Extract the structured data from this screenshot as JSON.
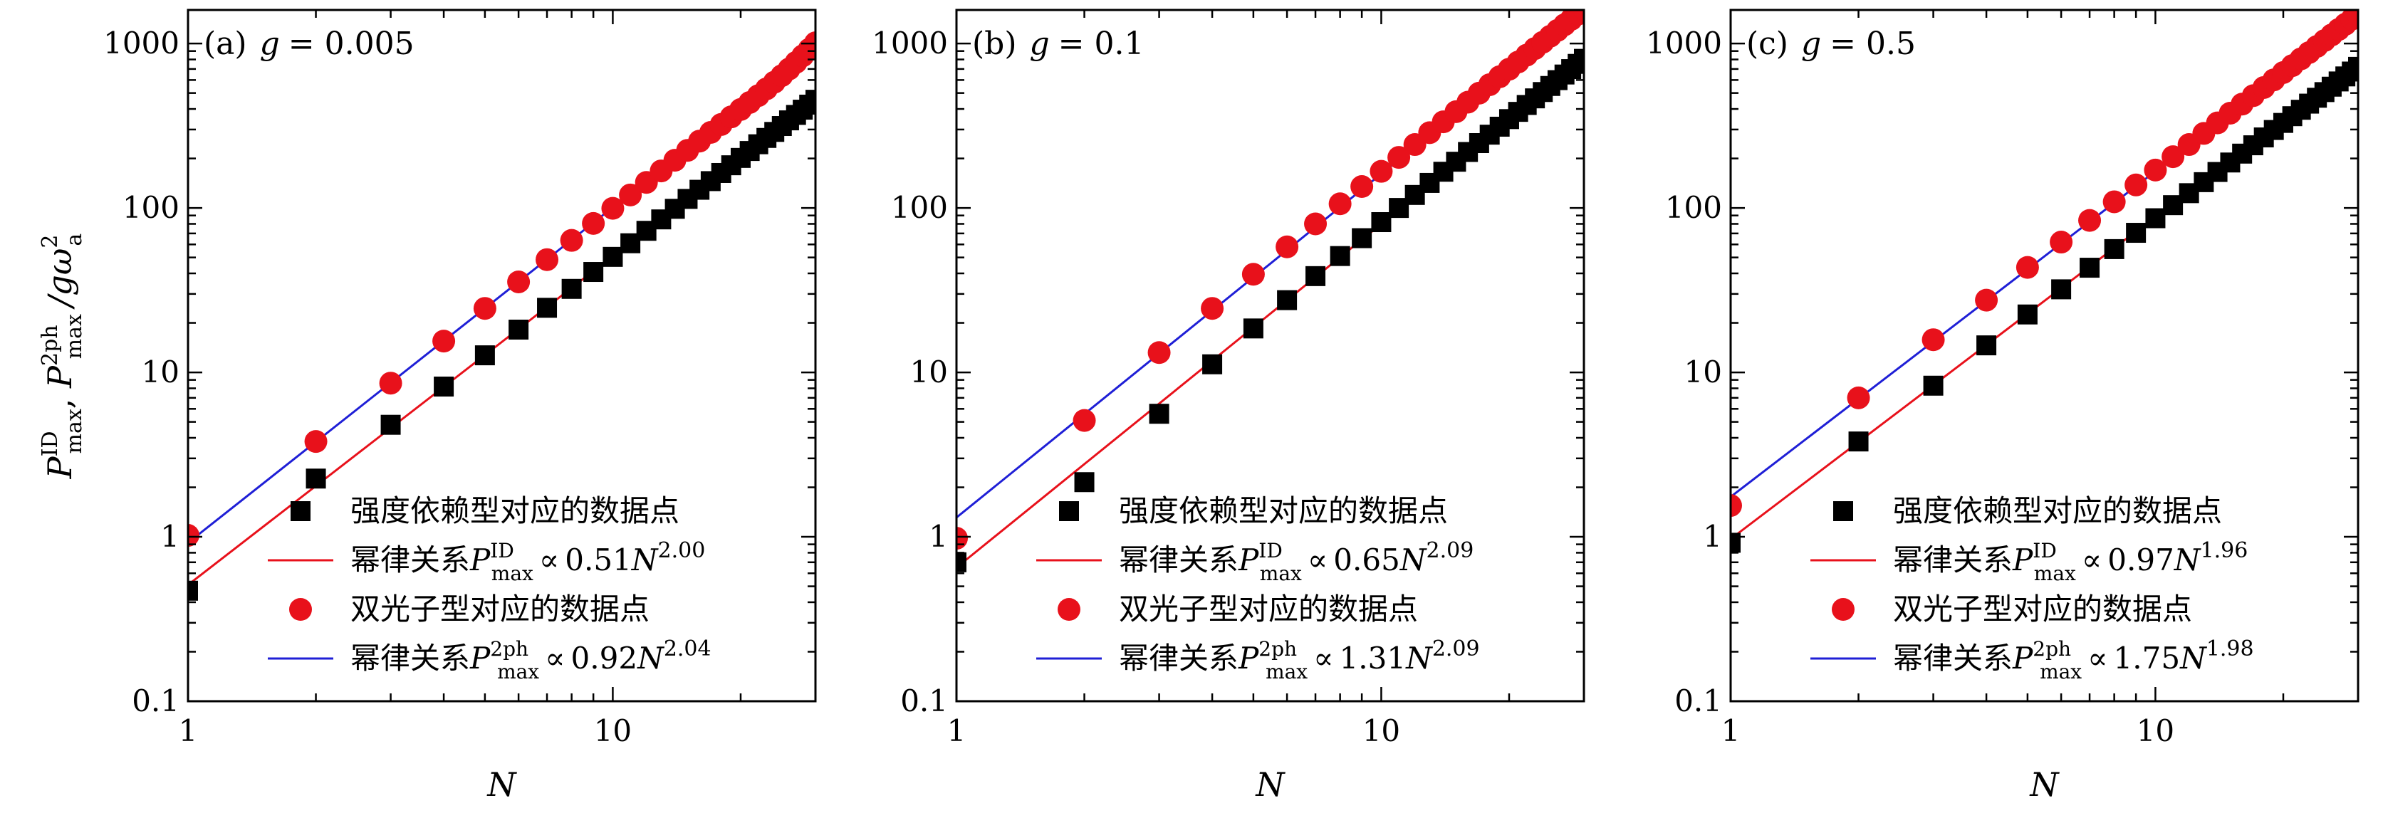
{
  "figure": {
    "y_axis_title": "P_max^ID, P_max^2ph / gω_a^2",
    "y_axis_parts": {
      "p1": "P",
      "p1_sup": "ID",
      "p1_sub": "max",
      "sep": ",  ",
      "p2": "P",
      "p2_sup": "2ph",
      "p2_sub": "max",
      "slash": "/gω",
      "omega_sup": "2",
      "omega_sub": "a"
    },
    "x_axis_title": "N",
    "legend_labels": {
      "id_points": "强度依赖型对应的数据点",
      "id_fit_prefix": "幂律关系",
      "tph_points": "双光子型对应的数据点",
      "tph_fit_prefix": "幂律关系",
      "sym_P": "P",
      "sym_max": "max",
      "sym_ID": "ID",
      "sym_2ph": "2ph",
      "propto": "∝",
      "sym_N": "N"
    },
    "colors": {
      "id_marker": "#000000",
      "id_line": "#e8111b",
      "tph_marker": "#e8111b",
      "tph_line": "#1f1fd6"
    }
  },
  "chart_data": [
    {
      "type": "scatter",
      "title": "(a) g = 0.005",
      "title_prefix": "(a)",
      "title_var": "g",
      "title_value": "= 0.005",
      "xlabel": "N",
      "ylabel": "P_max^ID, P_max^2ph / gω_a^2",
      "xscale": "log",
      "yscale": "log",
      "xlim": [
        1,
        30
      ],
      "ylim": [
        0.1,
        1600
      ],
      "x_ticks": [
        1,
        10
      ],
      "x_tick_labels": [
        "1",
        "10"
      ],
      "y_ticks": [
        0.1,
        1,
        10,
        100,
        1000
      ],
      "y_tick_labels": [
        "0.1",
        "1",
        "10",
        "100",
        "1000"
      ],
      "legend_position": "lower-right",
      "series": [
        {
          "name": "强度依赖型对应的数据点",
          "kind": "points",
          "marker": "square",
          "x": [
            1,
            2,
            3,
            4,
            5,
            6,
            7,
            8,
            9,
            10,
            11,
            12,
            13,
            14,
            15,
            16,
            17,
            18,
            19,
            20,
            21,
            22,
            23,
            24,
            25,
            26,
            27,
            28,
            29,
            30
          ],
          "y": [
            0.47,
            2.26,
            4.8,
            8.2,
            12.7,
            18.2,
            24.7,
            32.2,
            40.8,
            50.4,
            61,
            72.6,
            85.2,
            98.8,
            113.5,
            129,
            145.6,
            163.2,
            181.8,
            201.5,
            222,
            244,
            266.6,
            290,
            315,
            341,
            368,
            396,
            425,
            455
          ]
        },
        {
          "name": "幂律关系 P_max^ID ∝ 0.51N^2.00",
          "kind": "fit",
          "coef": 0.51,
          "exp": 2.0,
          "coef_label": "0.51",
          "exp_label": "2.00"
        },
        {
          "name": "双光子型对应的数据点",
          "kind": "points",
          "marker": "circle",
          "x": [
            1,
            2,
            3,
            4,
            5,
            6,
            7,
            8,
            9,
            10,
            11,
            12,
            13,
            14,
            15,
            16,
            17,
            18,
            19,
            20,
            21,
            22,
            23,
            24,
            25,
            26,
            27,
            28,
            29,
            30
          ],
          "y": [
            1.02,
            3.8,
            8.6,
            15.5,
            24.5,
            35.5,
            48.5,
            63.5,
            80.5,
            99.5,
            120,
            143,
            168,
            195,
            224,
            255,
            288,
            322,
            358,
            397,
            438,
            482,
            530,
            582,
            638,
            700,
            768,
            842,
            922,
            1010
          ]
        },
        {
          "name": "幂律关系 P_max^2ph ∝ 0.92N^2.04",
          "kind": "fit",
          "coef": 0.92,
          "exp": 2.04,
          "coef_label": "0.92",
          "exp_label": "2.04"
        }
      ]
    },
    {
      "type": "scatter",
      "title": "(b) g = 0.1",
      "title_prefix": "(b)",
      "title_var": "g",
      "title_value": "= 0.1",
      "xlabel": "N",
      "ylabel": "",
      "xscale": "log",
      "yscale": "log",
      "xlim": [
        1,
        30
      ],
      "ylim": [
        0.1,
        1600
      ],
      "x_ticks": [
        1,
        10
      ],
      "x_tick_labels": [
        "1",
        "10"
      ],
      "y_ticks": [
        0.1,
        1,
        10,
        100,
        1000
      ],
      "y_tick_labels": [
        "0.1",
        "1",
        "10",
        "100",
        "1000"
      ],
      "legend_position": "lower-right",
      "series": [
        {
          "name": "强度依赖型对应的数据点",
          "kind": "points",
          "marker": "square",
          "x": [
            1,
            2,
            3,
            4,
            5,
            6,
            7,
            8,
            9,
            10,
            11,
            12,
            13,
            14,
            15,
            16,
            17,
            18,
            19,
            20,
            21,
            22,
            23,
            24,
            25,
            26,
            27,
            28,
            29,
            30
          ],
          "y": [
            0.7,
            2.15,
            5.6,
            11.2,
            18.5,
            27.5,
            38.5,
            51,
            65.5,
            82,
            100,
            120,
            142,
            166,
            191,
            219,
            248,
            279,
            312,
            347,
            384,
            423,
            464,
            507,
            552,
            599,
            648,
            699,
            752,
            807
          ]
        },
        {
          "name": "幂律关系 P_max^ID ∝ 0.65N^2.09",
          "kind": "fit",
          "coef": 0.65,
          "exp": 2.09,
          "coef_label": "0.65",
          "exp_label": "2.09"
        },
        {
          "name": "双光子型对应的数据点",
          "kind": "points",
          "marker": "circle",
          "x": [
            1,
            2,
            3,
            4,
            5,
            6,
            7,
            8,
            9,
            10,
            11,
            12,
            13,
            14,
            15,
            16,
            17,
            18,
            19,
            20,
            21,
            22,
            23,
            24,
            25,
            26,
            27,
            28,
            29,
            30
          ],
          "y": [
            0.98,
            5.1,
            13.2,
            24.5,
            39.5,
            58,
            80,
            106,
            135,
            167,
            203,
            243,
            287,
            334,
            385,
            440,
            499,
            562,
            628,
            698,
            772,
            850,
            932,
            1018,
            1108,
            1202,
            1300,
            1402,
            1508,
            1618
          ]
        },
        {
          "name": "幂律关系 P_max^2ph ∝ 1.31N^2.09",
          "kind": "fit",
          "coef": 1.31,
          "exp": 2.09,
          "coef_label": "1.31",
          "exp_label": "2.09"
        }
      ]
    },
    {
      "type": "scatter",
      "title": "(c) g = 0.5",
      "title_prefix": "(c)",
      "title_var": "g",
      "title_value": "= 0.5",
      "xlabel": "N",
      "ylabel": "",
      "xscale": "log",
      "yscale": "log",
      "xlim": [
        1,
        30
      ],
      "ylim": [
        0.1,
        1600
      ],
      "x_ticks": [
        1,
        10
      ],
      "x_tick_labels": [
        "1",
        "10"
      ],
      "y_ticks": [
        0.1,
        1,
        10,
        100,
        1000
      ],
      "y_tick_labels": [
        "0.1",
        "1",
        "10",
        "100",
        "1000"
      ],
      "legend_position": "lower-right",
      "series": [
        {
          "name": "强度依赖型对应的数据点",
          "kind": "points",
          "marker": "square",
          "x": [
            1,
            2,
            3,
            4,
            5,
            6,
            7,
            8,
            9,
            10,
            11,
            12,
            13,
            14,
            15,
            16,
            17,
            18,
            19,
            20,
            21,
            22,
            23,
            24,
            25,
            26,
            27,
            28,
            29,
            30
          ],
          "y": [
            0.92,
            3.8,
            8.3,
            14.6,
            22.5,
            32,
            43.3,
            56.2,
            70.6,
            86.6,
            104,
            123,
            143.5,
            165.5,
            189,
            214,
            240.5,
            268.5,
            298,
            329,
            361.5,
            395.5,
            431,
            468,
            506.5,
            546.5,
            588,
            631,
            675.5,
            721.5
          ]
        },
        {
          "name": "幂律关系 P_max^ID ∝ 0.97N^1.96",
          "kind": "fit",
          "coef": 0.97,
          "exp": 1.96,
          "coef_label": "0.97",
          "exp_label": "1.96"
        },
        {
          "name": "双光子型对应的数据点",
          "kind": "points",
          "marker": "circle",
          "x": [
            1,
            2,
            3,
            4,
            5,
            6,
            7,
            8,
            9,
            10,
            11,
            12,
            13,
            14,
            15,
            16,
            17,
            18,
            19,
            20,
            21,
            22,
            23,
            24,
            25,
            26,
            27,
            28,
            29,
            30
          ],
          "y": [
            1.55,
            7,
            15.8,
            27.5,
            43.5,
            62,
            84,
            109,
            138,
            170,
            205,
            243,
            284,
            329,
            377,
            428,
            482,
            540,
            601,
            666,
            734,
            806,
            881,
            960,
            1042,
            1128,
            1217,
            1310,
            1407,
            1508
          ]
        },
        {
          "name": "幂律关系 P_max^2ph ∝ 1.75N^1.98",
          "kind": "fit",
          "coef": 1.75,
          "exp": 1.98,
          "coef_label": "1.75",
          "exp_label": "1.98"
        }
      ]
    }
  ]
}
